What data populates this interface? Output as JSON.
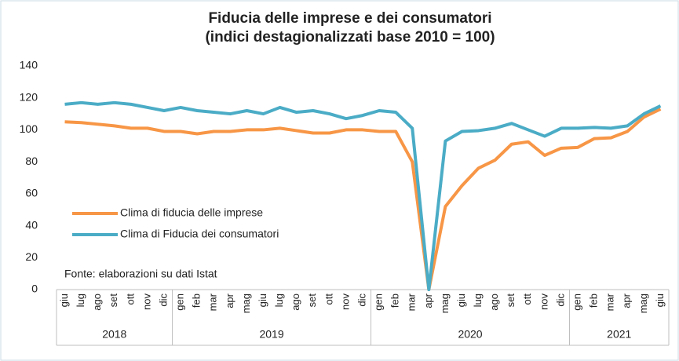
{
  "chart_data": {
    "type": "line",
    "title": "Fiducia delle imprese e dei consumatori",
    "subtitle": "(indici destagionalizzati base 2010 = 100)",
    "annotation": "Fonte: elaborazioni su dati Istat",
    "categories": [
      "giu",
      "lug",
      "ago",
      "set",
      "ott",
      "nov",
      "dic",
      "gen",
      "feb",
      "mar",
      "apr",
      "mag",
      "giu",
      "lug",
      "ago",
      "set",
      "ott",
      "nov",
      "dic",
      "gen",
      "feb",
      "mar",
      "apr",
      "mag",
      "giu",
      "lug",
      "ago",
      "set",
      "ott",
      "nov",
      "dic",
      "gen",
      "feb",
      "mar",
      "apr",
      "mag",
      "giu"
    ],
    "groups": [
      {
        "label": "2018",
        "count": 7
      },
      {
        "label": "2019",
        "count": 12
      },
      {
        "label": "2020",
        "count": 12
      },
      {
        "label": "2021",
        "count": 6
      }
    ],
    "series": [
      {
        "name": "Clima di fiducia delle imprese",
        "color": "#f79646",
        "values": [
          105,
          104.5,
          103.5,
          102.5,
          101,
          101,
          99,
          99,
          97.5,
          99,
          99,
          100,
          100,
          101,
          99.5,
          98,
          98,
          100,
          100,
          99,
          99,
          80,
          0,
          52,
          65,
          76,
          81,
          91,
          92.5,
          84,
          88.5,
          89,
          94.5,
          95,
          99,
          108,
          113
        ]
      },
      {
        "name": "Clima di Fiducia dei consumatori",
        "color": "#4bacc6",
        "values": [
          116,
          117,
          116,
          117,
          116,
          114,
          112,
          114,
          112,
          111,
          110,
          112,
          110,
          114,
          111,
          112,
          110,
          107,
          109,
          112,
          111,
          101,
          0,
          93,
          99,
          99.5,
          101,
          104,
          100,
          96,
          101,
          101,
          101.5,
          101,
          102.5,
          110,
          115
        ]
      }
    ],
    "ylim": [
      0,
      140
    ],
    "yticks": [
      0,
      20,
      40,
      60,
      80,
      100,
      120,
      140
    ],
    "grid": false,
    "legend": "left"
  }
}
